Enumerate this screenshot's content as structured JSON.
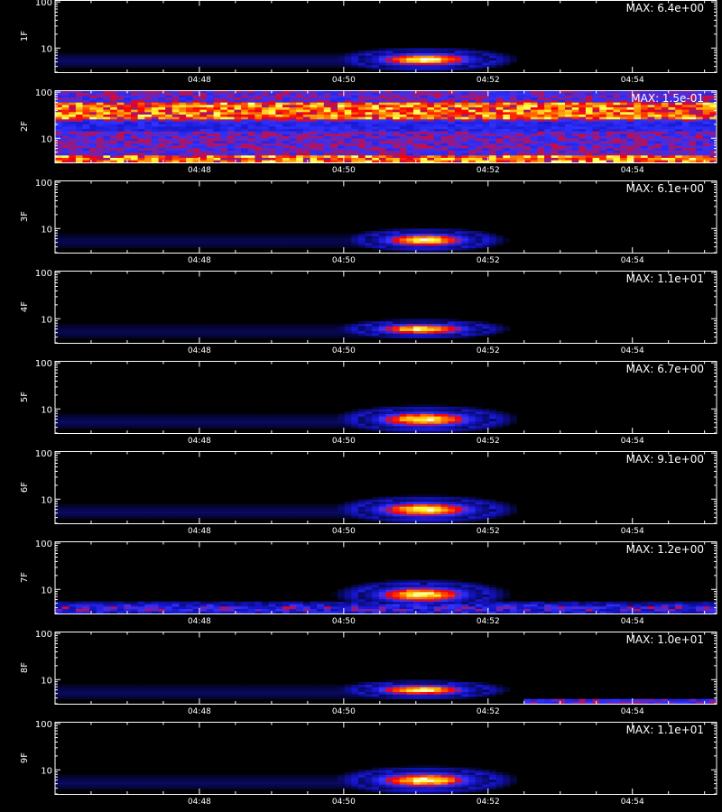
{
  "chart_data": [
    {
      "type": "heatmap",
      "panel": "1F",
      "ylabel": "1F",
      "max_label": "MAX: 6.4e+00",
      "x_ticks": [
        "04:48",
        "04:50",
        "04:52",
        "04:54"
      ],
      "y_ticks": [
        "100",
        "10"
      ],
      "features": [
        {
          "kind": "blob",
          "t_start": "04:50:25",
          "t_end": "04:51:50",
          "level_low": 4,
          "level_high": 8,
          "peak": 1.0
        },
        {
          "kind": "band",
          "t_start": "04:46:00",
          "t_end": "04:50:25",
          "level_low": 4,
          "level_high": 7,
          "strength": 0.15
        }
      ]
    },
    {
      "type": "heatmap",
      "panel": "2F",
      "ylabel": "2F",
      "max_label": "MAX: 1.5e-01",
      "x_ticks": [
        "04:48",
        "04:50",
        "04:52",
        "04:54"
      ],
      "y_ticks": [
        "100",
        "10"
      ],
      "features": [
        {
          "kind": "noise",
          "level_low": 3,
          "level_high": 100,
          "hot_bands": [
            [
              25,
              60
            ],
            [
              3,
              4.5
            ]
          ]
        }
      ]
    },
    {
      "type": "heatmap",
      "panel": "3F",
      "ylabel": "3F",
      "max_label": "MAX: 6.1e+00",
      "x_ticks": [
        "04:48",
        "04:50",
        "04:52",
        "04:54"
      ],
      "y_ticks": [
        "100",
        "10"
      ],
      "features": [
        {
          "kind": "blob",
          "t_start": "04:50:30",
          "t_end": "04:51:45",
          "level_low": 4,
          "level_high": 8,
          "peak": 1.0
        },
        {
          "kind": "band",
          "t_start": "04:46:00",
          "t_end": "04:50:30",
          "level_low": 4,
          "level_high": 7,
          "strength": 0.12
        }
      ]
    },
    {
      "type": "heatmap",
      "panel": "4F",
      "ylabel": "4F",
      "max_label": "MAX: 1.1e+01",
      "x_ticks": [
        "04:48",
        "04:50",
        "04:52",
        "04:54"
      ],
      "y_ticks": [
        "100",
        "10"
      ],
      "features": [
        {
          "kind": "blob",
          "t_start": "04:50:25",
          "t_end": "04:51:45",
          "level_low": 4.5,
          "level_high": 8,
          "peak": 1.0
        },
        {
          "kind": "band",
          "t_start": "04:46:00",
          "t_end": "04:50:25",
          "level_low": 4,
          "level_high": 7,
          "strength": 0.12
        }
      ]
    },
    {
      "type": "heatmap",
      "panel": "5F",
      "ylabel": "5F",
      "max_label": "MAX: 6.7e+00",
      "x_ticks": [
        "04:48",
        "04:50",
        "04:52",
        "04:54"
      ],
      "y_ticks": [
        "100",
        "10"
      ],
      "features": [
        {
          "kind": "blob",
          "t_start": "04:50:25",
          "t_end": "04:51:50",
          "level_low": 4,
          "level_high": 9,
          "peak": 1.0
        },
        {
          "kind": "band",
          "t_start": "04:46:00",
          "t_end": "04:50:25",
          "level_low": 4,
          "level_high": 7,
          "strength": 0.14
        }
      ]
    },
    {
      "type": "heatmap",
      "panel": "6F",
      "ylabel": "6F",
      "max_label": "MAX: 9.1e+00",
      "x_ticks": [
        "04:48",
        "04:50",
        "04:52",
        "04:54"
      ],
      "y_ticks": [
        "100",
        "10"
      ],
      "features": [
        {
          "kind": "blob",
          "t_start": "04:50:25",
          "t_end": "04:51:50",
          "level_low": 4,
          "level_high": 9,
          "peak": 1.0
        },
        {
          "kind": "band",
          "t_start": "04:46:00",
          "t_end": "04:50:25",
          "level_low": 4,
          "level_high": 7,
          "strength": 0.14
        }
      ]
    },
    {
      "type": "heatmap",
      "panel": "7F",
      "ylabel": "7F",
      "max_label": "MAX: 1.2e+00",
      "x_ticks": [
        "04:48",
        "04:50",
        "04:52",
        "04:54"
      ],
      "y_ticks": [
        "100",
        "10"
      ],
      "features": [
        {
          "kind": "blob",
          "t_start": "04:50:25",
          "t_end": "04:51:45",
          "level_low": 5,
          "level_high": 12,
          "peak": 1.0
        },
        {
          "kind": "noise_band",
          "t_start": "04:46:00",
          "t_end": "04:55:10",
          "level_low": 3,
          "level_high": 5,
          "strength": 0.45
        }
      ]
    },
    {
      "type": "heatmap",
      "panel": "8F",
      "ylabel": "8F",
      "max_label": "MAX: 1.0e+01",
      "x_ticks": [
        "04:48",
        "04:50",
        "04:52",
        "04:54"
      ],
      "y_ticks": [
        "100",
        "10"
      ],
      "features": [
        {
          "kind": "blob",
          "t_start": "04:50:25",
          "t_end": "04:51:45",
          "level_low": 4.5,
          "level_high": 8,
          "peak": 1.0
        },
        {
          "kind": "band",
          "t_start": "04:46:00",
          "t_end": "04:50:25",
          "level_low": 4,
          "level_high": 7,
          "strength": 0.14
        },
        {
          "kind": "strip",
          "t_start": "04:52:30",
          "t_end": "04:55:10",
          "level_low": 3,
          "level_high": 3.8,
          "strength": 0.55
        }
      ]
    },
    {
      "type": "heatmap",
      "panel": "9F",
      "ylabel": "9F",
      "max_label": "MAX: 1.1e+01",
      "x_ticks": [
        "04:48",
        "04:50",
        "04:52",
        "04:54"
      ],
      "y_ticks": [
        "100",
        "10"
      ],
      "features": [
        {
          "kind": "blob",
          "t_start": "04:50:25",
          "t_end": "04:51:50",
          "level_low": 4,
          "level_high": 9,
          "peak": 1.0
        },
        {
          "kind": "band",
          "t_start": "04:46:00",
          "t_end": "04:50:25",
          "level_low": 4,
          "level_high": 7,
          "strength": 0.14
        }
      ]
    }
  ],
  "axis": {
    "x_min": "04:46:00",
    "x_max": "04:55:10",
    "y_min": 3,
    "y_max": 110,
    "y_scale": "log"
  },
  "colors": {
    "axes": "#ffffff",
    "background": "#000000"
  }
}
